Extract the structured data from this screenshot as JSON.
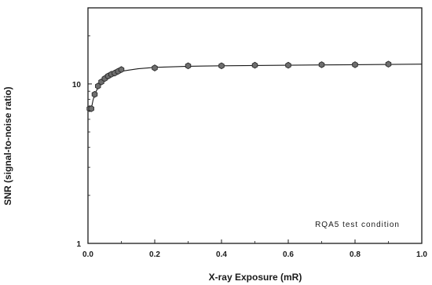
{
  "chart_data": {
    "type": "scatter",
    "title": "",
    "xlabel": "X-ray Exposure (mR)",
    "ylabel": "SNR (signal-to-noise ratio)",
    "xlim": [
      0.0,
      1.0
    ],
    "ylim": [
      1,
      30
    ],
    "y_scale": "log",
    "x_ticks": [
      0.0,
      0.2,
      0.4,
      0.6,
      0.8,
      1.0
    ],
    "x_tick_labels": [
      "0.0",
      "0.2",
      "0.4",
      "0.6",
      "0.8",
      "1.0"
    ],
    "y_ticks": [
      1,
      10
    ],
    "y_tick_labels": [
      "1",
      "10"
    ],
    "grid": false,
    "legend": "none",
    "annotation": "RQA5 test condition",
    "marker_color": "#6e6e6e",
    "line_color": "#1a1a1a",
    "series": [
      {
        "x": [
          0.005,
          0.01,
          0.02,
          0.03,
          0.04,
          0.05,
          0.06,
          0.07,
          0.08,
          0.09,
          0.1,
          0.2,
          0.3,
          0.4,
          0.5,
          0.6,
          0.7,
          0.8,
          0.9
        ],
        "values": [
          7.0,
          7.0,
          8.6,
          9.7,
          10.3,
          10.8,
          11.2,
          11.5,
          11.7,
          12.0,
          12.3,
          12.6,
          13.0,
          13.0,
          13.1,
          13.1,
          13.2,
          13.2,
          13.3
        ]
      }
    ],
    "fit_curve": {
      "x": [
        0.01,
        0.015,
        0.02,
        0.03,
        0.04,
        0.05,
        0.06,
        0.08,
        0.1,
        0.12,
        0.15,
        0.2,
        0.3,
        0.4,
        0.5,
        0.6,
        0.7,
        0.8,
        0.9,
        1.0
      ],
      "values": [
        7.0,
        7.9,
        8.6,
        9.5,
        10.2,
        10.7,
        11.1,
        11.6,
        12.0,
        12.2,
        12.45,
        12.7,
        12.9,
        13.0,
        13.05,
        13.1,
        13.15,
        13.2,
        13.25,
        13.3
      ]
    }
  }
}
